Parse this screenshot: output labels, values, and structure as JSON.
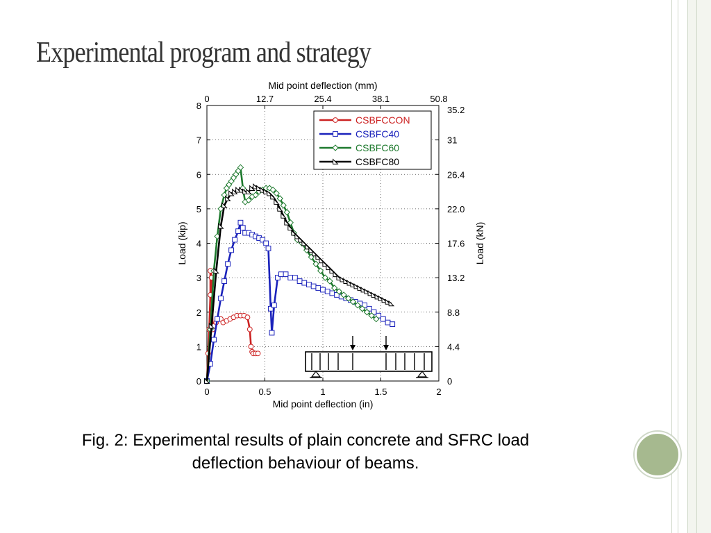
{
  "slide": {
    "title": "Experimental program and strategy"
  },
  "caption": {
    "line1": "Fig. 2: Experimental results of plain concrete and SFRC load",
    "line2": "deflection behaviour of beams."
  },
  "chart_data": {
    "type": "line",
    "xlabel": "Mid point deflection (in)",
    "x2label": "Mid point deflection (mm)",
    "ylabel": "Load (kip)",
    "y2label": "Load (kN)",
    "xlim": [
      0,
      2
    ],
    "ylim": [
      0,
      8
    ],
    "xticks": [
      "0",
      "0.5",
      "1",
      "1.5",
      "2"
    ],
    "x2ticks": [
      "0",
      "12.7",
      "25.4",
      "38.1",
      "50.8"
    ],
    "yticks": [
      "0",
      "1",
      "2",
      "3",
      "4",
      "5",
      "6",
      "7",
      "8"
    ],
    "y2ticks": [
      "0",
      "4.4",
      "8.8",
      "13.2",
      "17.6",
      "22.0",
      "26.4",
      "31",
      "35.2"
    ],
    "legend_position": "top-right",
    "series": [
      {
        "name": "CSBFCCON",
        "color": "#cc2222",
        "marker": "circle",
        "x": [
          0,
          0.01,
          0.02,
          0.03,
          0.03,
          0.04,
          0.05,
          0.06,
          0.08,
          0.1,
          0.12,
          0.14,
          0.17,
          0.2,
          0.23,
          0.26,
          0.29,
          0.32,
          0.35,
          0.37,
          0.38,
          0.39,
          0.4,
          0.42,
          0.44
        ],
        "y": [
          0,
          0.8,
          1.5,
          2.5,
          3.2,
          3.0,
          1.5,
          1.6,
          1.7,
          1.8,
          1.8,
          1.7,
          1.75,
          1.8,
          1.85,
          1.9,
          1.9,
          1.9,
          1.85,
          1.5,
          1.0,
          0.85,
          0.8,
          0.8,
          0.8
        ]
      },
      {
        "name": "CSBFC40",
        "color": "#1a22bb",
        "marker": "square",
        "x": [
          0,
          0.03,
          0.06,
          0.09,
          0.12,
          0.15,
          0.18,
          0.21,
          0.24,
          0.27,
          0.29,
          0.31,
          0.33,
          0.36,
          0.39,
          0.42,
          0.45,
          0.48,
          0.51,
          0.53,
          0.55,
          0.56,
          0.58,
          0.61,
          0.64,
          0.68,
          0.72,
          0.76,
          0.8,
          0.84,
          0.88,
          0.92,
          0.96,
          1.0,
          1.04,
          1.08,
          1.12,
          1.16,
          1.2,
          1.24,
          1.28,
          1.32,
          1.36,
          1.4,
          1.44,
          1.48,
          1.52,
          1.56,
          1.6
        ],
        "y": [
          0,
          0.5,
          1.2,
          1.8,
          2.4,
          2.9,
          3.4,
          3.8,
          4.1,
          4.35,
          4.6,
          4.45,
          4.3,
          4.3,
          4.25,
          4.2,
          4.15,
          4.1,
          4.0,
          3.85,
          2.1,
          1.4,
          2.2,
          3.0,
          3.1,
          3.1,
          3.0,
          3.0,
          2.9,
          2.85,
          2.8,
          2.75,
          2.7,
          2.65,
          2.6,
          2.55,
          2.5,
          2.45,
          2.4,
          2.35,
          2.3,
          2.25,
          2.2,
          2.1,
          2.0,
          1.9,
          1.8,
          1.7,
          1.65
        ]
      },
      {
        "name": "CSBFC60",
        "color": "#1e7a2e",
        "marker": "diamond",
        "x": [
          0,
          0.03,
          0.06,
          0.09,
          0.12,
          0.15,
          0.17,
          0.19,
          0.21,
          0.23,
          0.25,
          0.27,
          0.29,
          0.31,
          0.33,
          0.36,
          0.39,
          0.42,
          0.45,
          0.48,
          0.51,
          0.54,
          0.57,
          0.6,
          0.63,
          0.66,
          0.69,
          0.72,
          0.75,
          0.78,
          0.82,
          0.86,
          0.9,
          0.94,
          0.98,
          1.02,
          1.06,
          1.1,
          1.14,
          1.18,
          1.22,
          1.26,
          1.3,
          1.34,
          1.38,
          1.42,
          1.46
        ],
        "y": [
          0,
          1.5,
          3.2,
          4.2,
          5.0,
          5.4,
          5.6,
          5.7,
          5.8,
          5.9,
          6.0,
          6.1,
          6.2,
          5.6,
          5.2,
          5.25,
          5.35,
          5.4,
          5.5,
          5.55,
          5.6,
          5.6,
          5.55,
          5.45,
          5.3,
          5.1,
          4.9,
          4.6,
          4.3,
          4.1,
          4.0,
          3.8,
          3.6,
          3.4,
          3.2,
          3.0,
          2.9,
          2.7,
          2.6,
          2.5,
          2.4,
          2.3,
          2.2,
          2.1,
          2.0,
          1.9,
          1.8
        ]
      },
      {
        "name": "CSBFC80",
        "color": "#000000",
        "marker": "triangle",
        "x": [
          0,
          0.04,
          0.08,
          0.12,
          0.15,
          0.18,
          0.21,
          0.24,
          0.27,
          0.3,
          0.33,
          0.36,
          0.39,
          0.42,
          0.45,
          0.48,
          0.51,
          0.54,
          0.57,
          0.6,
          0.63,
          0.66,
          0.69,
          0.72,
          0.75,
          0.78,
          0.81,
          0.84,
          0.87,
          0.9,
          0.93,
          0.96,
          0.99,
          1.02,
          1.05,
          1.08,
          1.11,
          1.14,
          1.17,
          1.2,
          1.23,
          1.26,
          1.29,
          1.32,
          1.35,
          1.38,
          1.41,
          1.44,
          1.47,
          1.5,
          1.53,
          1.56,
          1.59
        ],
        "y": [
          0,
          1.6,
          3.2,
          4.5,
          5.1,
          5.3,
          5.45,
          5.5,
          5.55,
          5.55,
          5.5,
          5.5,
          5.6,
          5.65,
          5.6,
          5.55,
          5.5,
          5.45,
          5.35,
          5.2,
          5.0,
          4.8,
          4.6,
          4.45,
          4.3,
          4.2,
          4.1,
          4.0,
          3.9,
          3.8,
          3.7,
          3.6,
          3.5,
          3.4,
          3.3,
          3.2,
          3.1,
          3.0,
          2.95,
          2.9,
          2.85,
          2.8,
          2.75,
          2.7,
          2.65,
          2.6,
          2.55,
          2.5,
          2.45,
          2.4,
          2.35,
          2.3,
          2.25
        ]
      }
    ],
    "annotations": [
      "beam-loading-schematic"
    ]
  }
}
